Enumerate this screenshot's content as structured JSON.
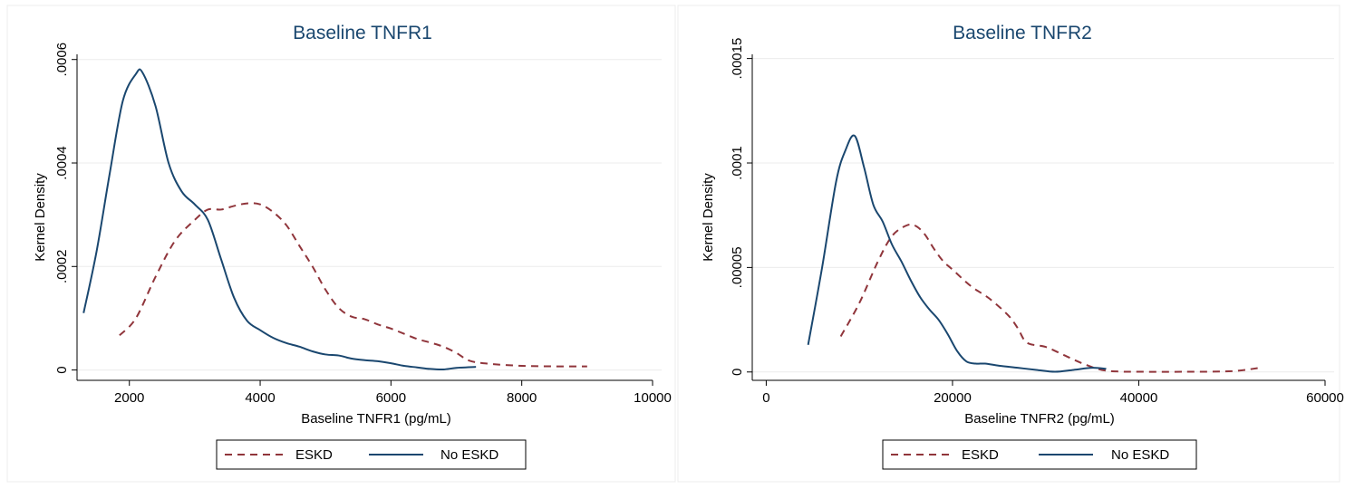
{
  "chart_data": [
    {
      "type": "line",
      "title": "Baseline TNFR1",
      "xlabel": "Baseline TNFR1 (pg/mL)",
      "ylabel": "Kernel Density",
      "xlim": [
        1200,
        10000
      ],
      "ylim": [
        -2e-05,
        0.00061
      ],
      "xticks": [
        2000,
        4000,
        6000,
        8000,
        10000
      ],
      "xtick_labels": [
        "2000",
        "4000",
        "6000",
        "8000",
        "10000"
      ],
      "yticks": [
        0,
        0.0002,
        0.0004,
        0.0006
      ],
      "ytick_labels": [
        "0",
        ".0002",
        ".0004",
        ".0006"
      ],
      "grid": true,
      "legend": "bottom",
      "series": [
        {
          "name": "ESKD",
          "color": "#90353b",
          "style": "dashed",
          "x": [
            1850,
            2100,
            2400,
            2700,
            3000,
            3200,
            3400,
            3600,
            3800,
            4000,
            4200,
            4400,
            4600,
            4800,
            5000,
            5200,
            5400,
            5600,
            5800,
            6000,
            6200,
            6400,
            6600,
            6800,
            7000,
            7200,
            7500,
            8000,
            8500,
            9000
          ],
          "y": [
            6.7e-05,
            0.0001,
            0.00018,
            0.00025,
            0.00029,
            0.00031,
            0.00031,
            0.000317,
            0.000322,
            0.00032,
            0.000305,
            0.00028,
            0.00024,
            0.0002,
            0.000155,
            0.00012,
            0.000103,
            9.8e-05,
            8.8e-05,
            8e-05,
            7e-05,
            6e-05,
            5.3e-05,
            4.5e-05,
            3.3e-05,
            1.8e-05,
            1.2e-05,
            8e-06,
            7e-06,
            7e-06
          ]
        },
        {
          "name": "No ESKD",
          "color": "#1a476f",
          "style": "solid",
          "x": [
            1300,
            1500,
            1700,
            1900,
            2100,
            2200,
            2400,
            2600,
            2800,
            3000,
            3200,
            3400,
            3600,
            3800,
            4000,
            4200,
            4400,
            4600,
            4800,
            5000,
            5200,
            5400,
            5600,
            5800,
            6000,
            6200,
            6400,
            6600,
            6800,
            7000,
            7300
          ],
          "y": [
            0.00011,
            0.00023,
            0.00038,
            0.00052,
            0.000572,
            0.000575,
            0.00051,
            0.0004,
            0.000345,
            0.00032,
            0.00029,
            0.000215,
            0.00014,
            9.5e-05,
            7.7e-05,
            6.2e-05,
            5.2e-05,
            4.5e-05,
            3.6e-05,
            3e-05,
            2.8e-05,
            2.2e-05,
            1.9e-05,
            1.7e-05,
            1.3e-05,
            8e-06,
            5e-06,
            2e-06,
            1e-06,
            4e-06,
            6e-06
          ]
        }
      ]
    },
    {
      "type": "line",
      "title": "Baseline TNFR2",
      "xlabel": "Baseline TNFR2 (pg/mL)",
      "ylabel": "Kernel Density",
      "xlim": [
        -1500,
        60000
      ],
      "ylim": [
        -4e-06,
        0.000152
      ],
      "xticks": [
        0,
        20000,
        40000,
        60000
      ],
      "xtick_labels": [
        "0",
        "20000",
        "40000",
        "60000"
      ],
      "yticks": [
        0,
        5e-05,
        0.0001,
        0.00015
      ],
      "ytick_labels": [
        "0",
        ".00005",
        ".0001",
        ".00015"
      ],
      "grid": true,
      "legend": "bottom",
      "series": [
        {
          "name": "ESKD",
          "color": "#90353b",
          "style": "dashed",
          "x": [
            8000,
            10000,
            12000,
            13500,
            15000,
            16000,
            17000,
            18000,
            19000,
            20000,
            22000,
            24000,
            26000,
            27000,
            28000,
            30000,
            32000,
            34000,
            36000,
            38000,
            40000,
            45000,
            50000,
            53000
          ],
          "y": [
            1.7e-05,
            3.3e-05,
            5.3e-05,
            6.5e-05,
            7e-05,
            7e-05,
            6.6e-05,
            5.9e-05,
            5.3e-05,
            4.9e-05,
            4.1e-05,
            3.5e-05,
            2.7e-05,
            2.1e-05,
            1.4e-05,
            1.2e-05,
            8e-06,
            4e-06,
            1e-06,
            2e-07,
            1e-07,
            1e-07,
            4e-07,
            2e-06
          ]
        },
        {
          "name": "No ESKD",
          "color": "#1a476f",
          "style": "solid",
          "x": [
            4500,
            6000,
            7500,
            8500,
            9500,
            10500,
            11500,
            12500,
            13500,
            14500,
            15500,
            16500,
            17500,
            18500,
            19500,
            20500,
            21500,
            22500,
            23500,
            25000,
            27000,
            29000,
            31000,
            33000,
            35000,
            36500
          ],
          "y": [
            1.3e-05,
            5e-05,
            9.1e-05,
            0.000106,
            0.000113,
            9.8e-05,
            8e-05,
            7.2e-05,
            6.1e-05,
            5.3e-05,
            4.4e-05,
            3.6e-05,
            3e-05,
            2.5e-05,
            1.8e-05,
            1e-05,
            5e-06,
            4e-06,
            4e-06,
            3e-06,
            2e-06,
            1e-06,
            1e-07,
            1e-06,
            2e-06,
            1.5e-06
          ]
        }
      ]
    }
  ]
}
